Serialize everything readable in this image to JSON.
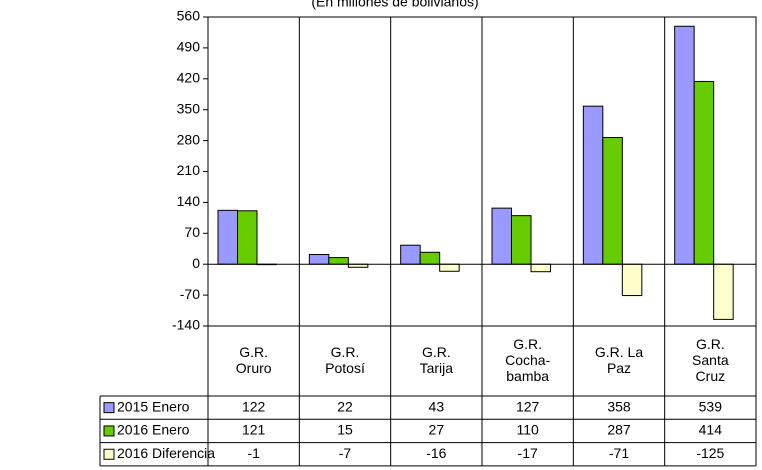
{
  "chart_data": {
    "type": "bar",
    "subtitle": "(En millones de bolivianos)",
    "categories": [
      [
        "G.R.",
        "Oruro"
      ],
      [
        "G.R.",
        "Potosí"
      ],
      [
        "G.R.",
        "Tarija"
      ],
      [
        "G.R.",
        "Cocha-",
        "bamba"
      ],
      [
        "G.R. La",
        "Paz"
      ],
      [
        "G.R.",
        "Santa",
        "Cruz"
      ]
    ],
    "series": [
      {
        "name": "2015 Enero",
        "color": "#9999ff",
        "values": [
          122,
          22,
          43,
          127,
          358,
          539
        ]
      },
      {
        "name": "2016 Enero",
        "color": "#66cc00",
        "values": [
          121,
          15,
          27,
          110,
          287,
          414
        ]
      },
      {
        "name": "2016 Diferencia",
        "color": "#ffffcc",
        "values": [
          -1,
          -7,
          -16,
          -17,
          -71,
          -125
        ]
      }
    ],
    "ylim": [
      -140,
      560
    ],
    "yticks": [
      -140,
      -70,
      0,
      70,
      140,
      210,
      280,
      350,
      420,
      490,
      560
    ]
  }
}
